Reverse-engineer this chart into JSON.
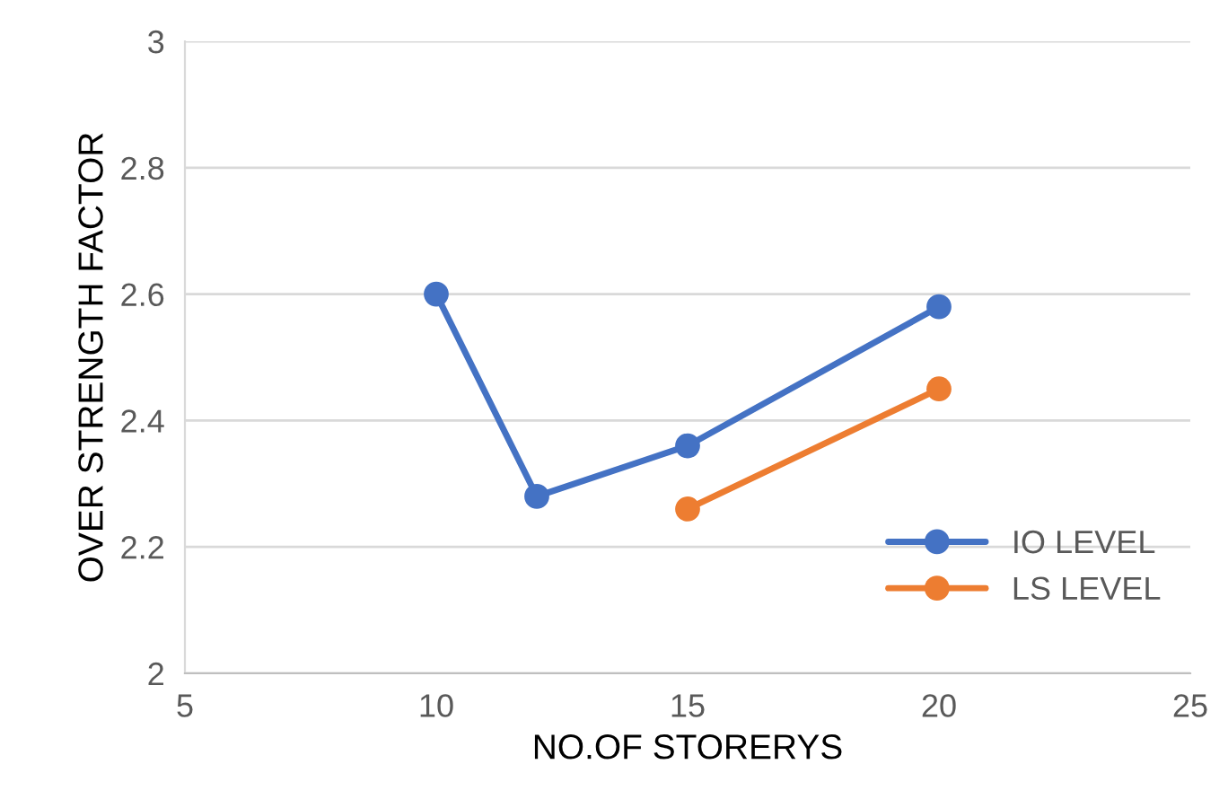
{
  "chart_data": {
    "type": "line",
    "xlabel": "NO.OF STORERYS",
    "ylabel": "OVER STRENGTH FACTOR",
    "xlim": [
      5,
      25
    ],
    "xticks": [
      5,
      10,
      15,
      20,
      25
    ],
    "ylim": [
      2,
      3
    ],
    "yticks": [
      2,
      2.2,
      2.4,
      2.6,
      2.8,
      3
    ],
    "grid": "y",
    "legend": "bottom right",
    "marker": "circle",
    "line_style": "solid",
    "series": [
      {
        "name": "IO LEVEL",
        "color": "#4472c4",
        "x": [
          10,
          12,
          15,
          20
        ],
        "values": [
          2.6,
          2.28,
          2.36,
          2.58
        ]
      },
      {
        "name": "LS LEVEL",
        "color": "#ed7d31",
        "x": [
          15,
          20
        ],
        "values": [
          2.26,
          2.45
        ]
      }
    ]
  }
}
